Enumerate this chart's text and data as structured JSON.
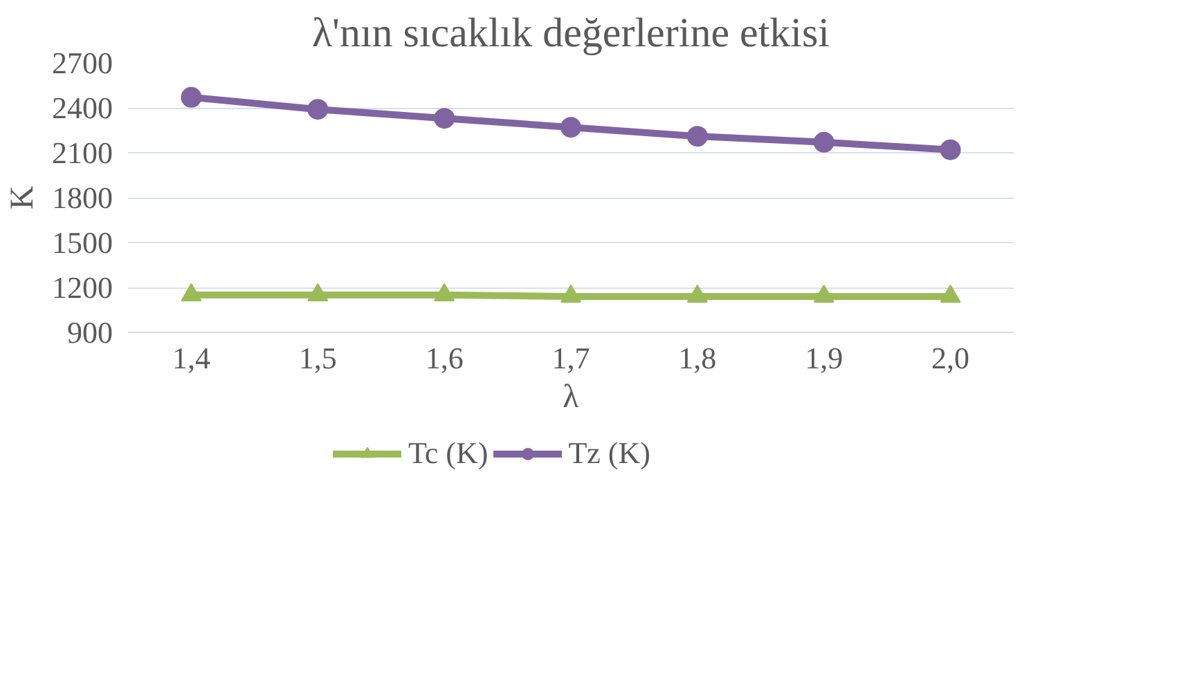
{
  "chart_data": {
    "type": "line",
    "title": "λ'nın sıcaklık değerlerine etkisi",
    "xlabel": "λ",
    "ylabel": "K",
    "categories": [
      "1,4",
      "1,5",
      "1,6",
      "1,7",
      "1,8",
      "1,9",
      "2,0"
    ],
    "series": [
      {
        "name": "Tc (K)",
        "color": "#9bbb59",
        "marker": "triangle",
        "values": [
          1150,
          1150,
          1150,
          1140,
          1140,
          1140,
          1140
        ]
      },
      {
        "name": "Tz (K)",
        "color": "#8064a2",
        "marker": "circle",
        "values": [
          2470,
          2390,
          2330,
          2270,
          2210,
          2170,
          2120
        ]
      }
    ],
    "ylim": [
      900,
      2700
    ],
    "yticks": [
      900,
      1200,
      1500,
      1800,
      2100,
      2400,
      2700
    ],
    "grid": "y",
    "legend": "bottom",
    "line_style": "solid"
  }
}
